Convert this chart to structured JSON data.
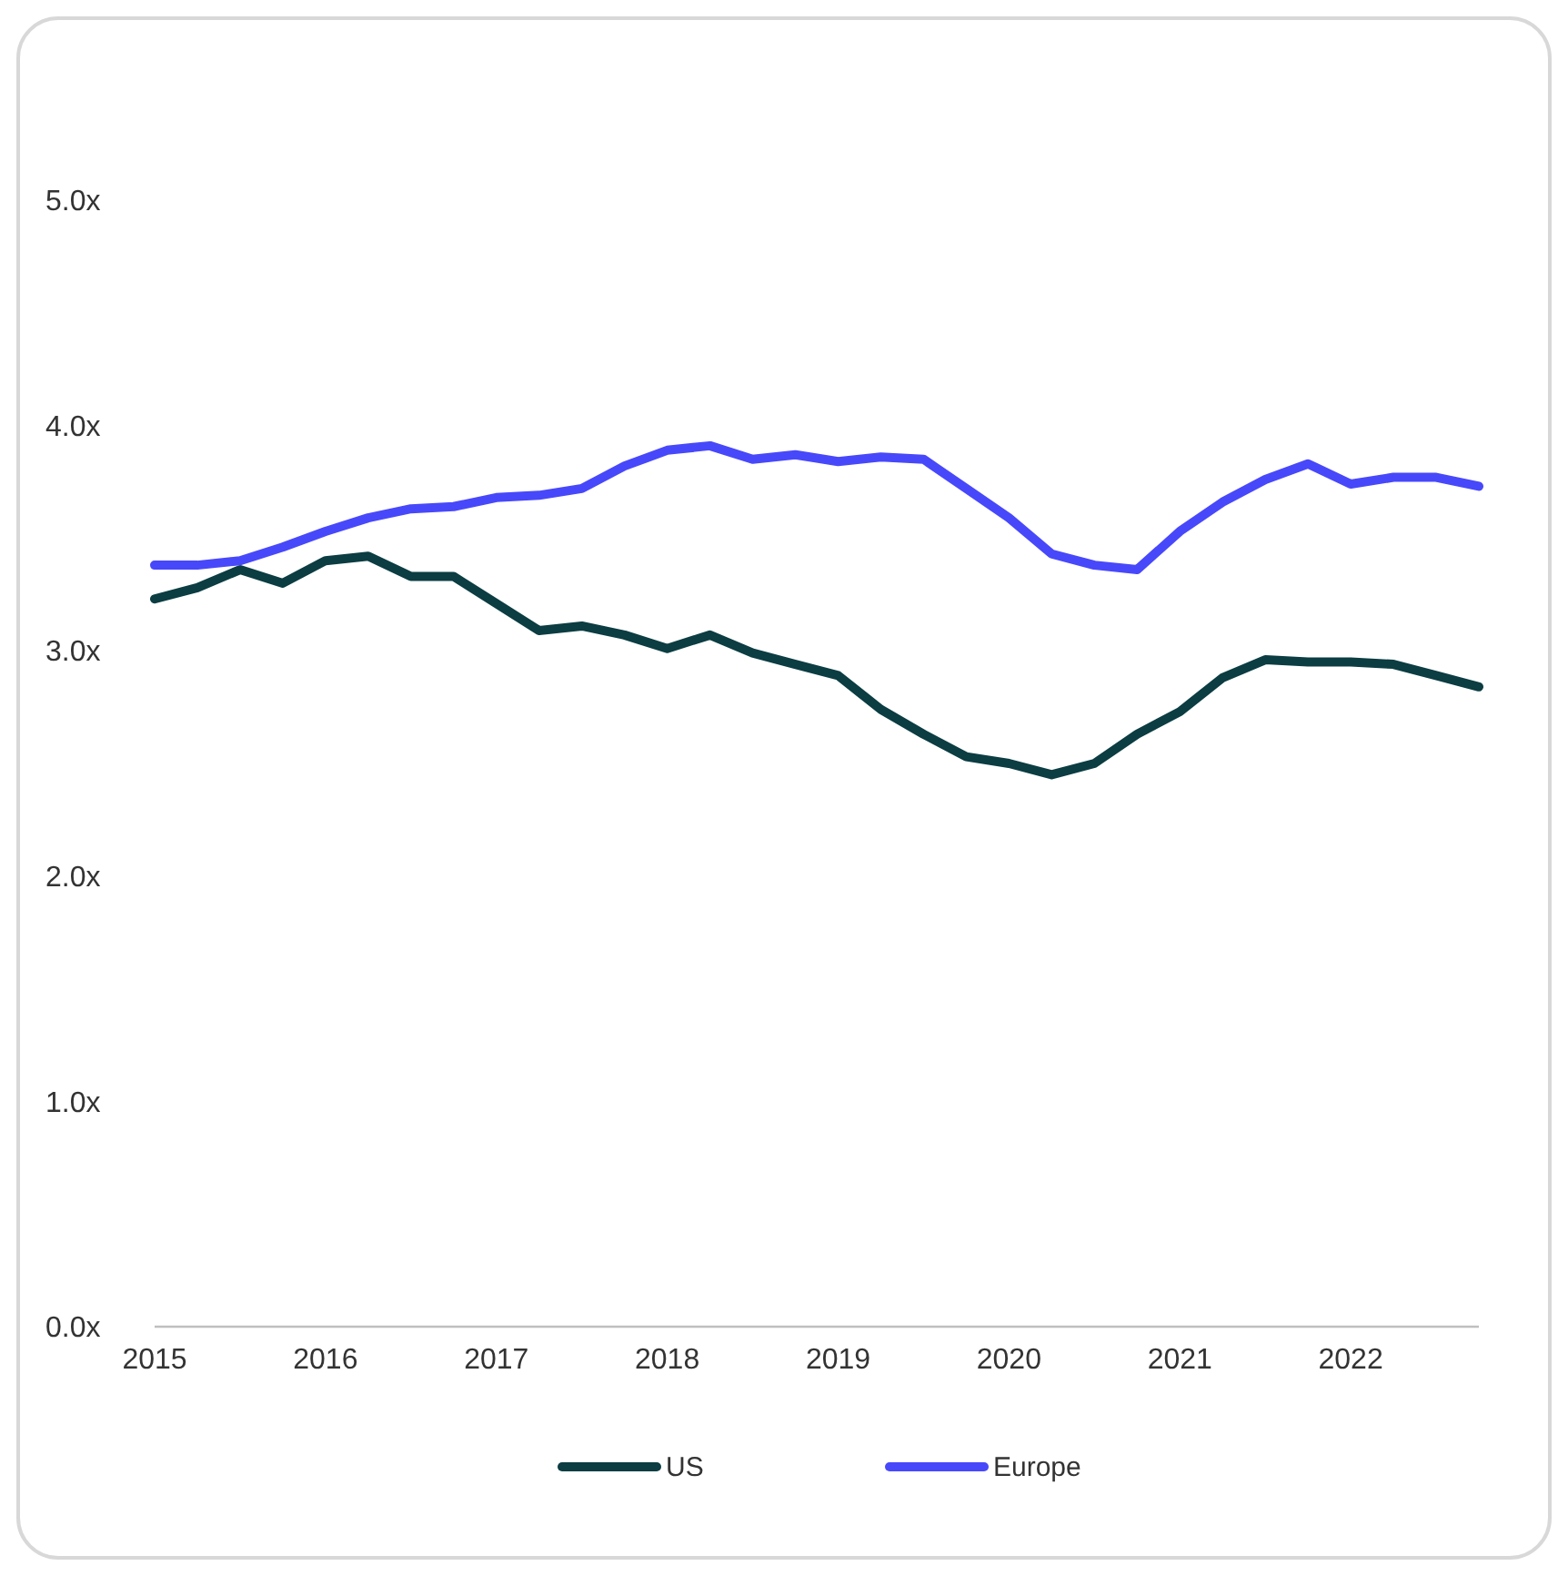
{
  "chart_data": {
    "type": "line",
    "x": [
      2015,
      2015.25,
      2015.5,
      2015.75,
      2016,
      2016.25,
      2016.5,
      2016.75,
      2017,
      2017.25,
      2017.5,
      2017.75,
      2018,
      2018.25,
      2018.5,
      2018.75,
      2019,
      2019.25,
      2019.5,
      2019.75,
      2020,
      2020.25,
      2020.5,
      2020.75,
      2021,
      2021.25,
      2021.5,
      2021.75,
      2022,
      2022.25,
      2022.5,
      2022.75
    ],
    "series": [
      {
        "name": "US",
        "color": "#0b3d42",
        "values": [
          3.23,
          3.28,
          3.36,
          3.3,
          3.4,
          3.42,
          3.33,
          3.33,
          3.21,
          3.09,
          3.11,
          3.07,
          3.01,
          3.07,
          2.99,
          2.94,
          2.89,
          2.74,
          2.63,
          2.53,
          2.5,
          2.45,
          2.5,
          2.63,
          2.73,
          2.88,
          2.96,
          2.95,
          2.95,
          2.94,
          2.89,
          2.84
        ]
      },
      {
        "name": "Europe",
        "color": "#4848fb",
        "values": [
          3.38,
          3.38,
          3.4,
          3.46,
          3.53,
          3.59,
          3.63,
          3.64,
          3.68,
          3.69,
          3.72,
          3.82,
          3.89,
          3.91,
          3.85,
          3.87,
          3.84,
          3.86,
          3.85,
          3.72,
          3.59,
          3.43,
          3.38,
          3.36,
          3.53,
          3.66,
          3.76,
          3.83,
          3.74,
          3.77,
          3.77,
          3.73
        ]
      }
    ],
    "xlim": [
      2015,
      2022.75
    ],
    "xticks": [
      2015,
      2016,
      2017,
      2018,
      2019,
      2020,
      2021,
      2022
    ],
    "ylim": [
      0,
      5
    ],
    "yticks": [
      {
        "value": 0,
        "label": "0.0x"
      },
      {
        "value": 1,
        "label": "1.0x"
      },
      {
        "value": 2,
        "label": "2.0x"
      },
      {
        "value": 3,
        "label": "3.0x"
      },
      {
        "value": 4,
        "label": "4.0x"
      },
      {
        "value": 5,
        "label": "5.0x"
      }
    ],
    "grid": false,
    "legend": "bottom",
    "line_style": "solid",
    "marker": "none"
  }
}
